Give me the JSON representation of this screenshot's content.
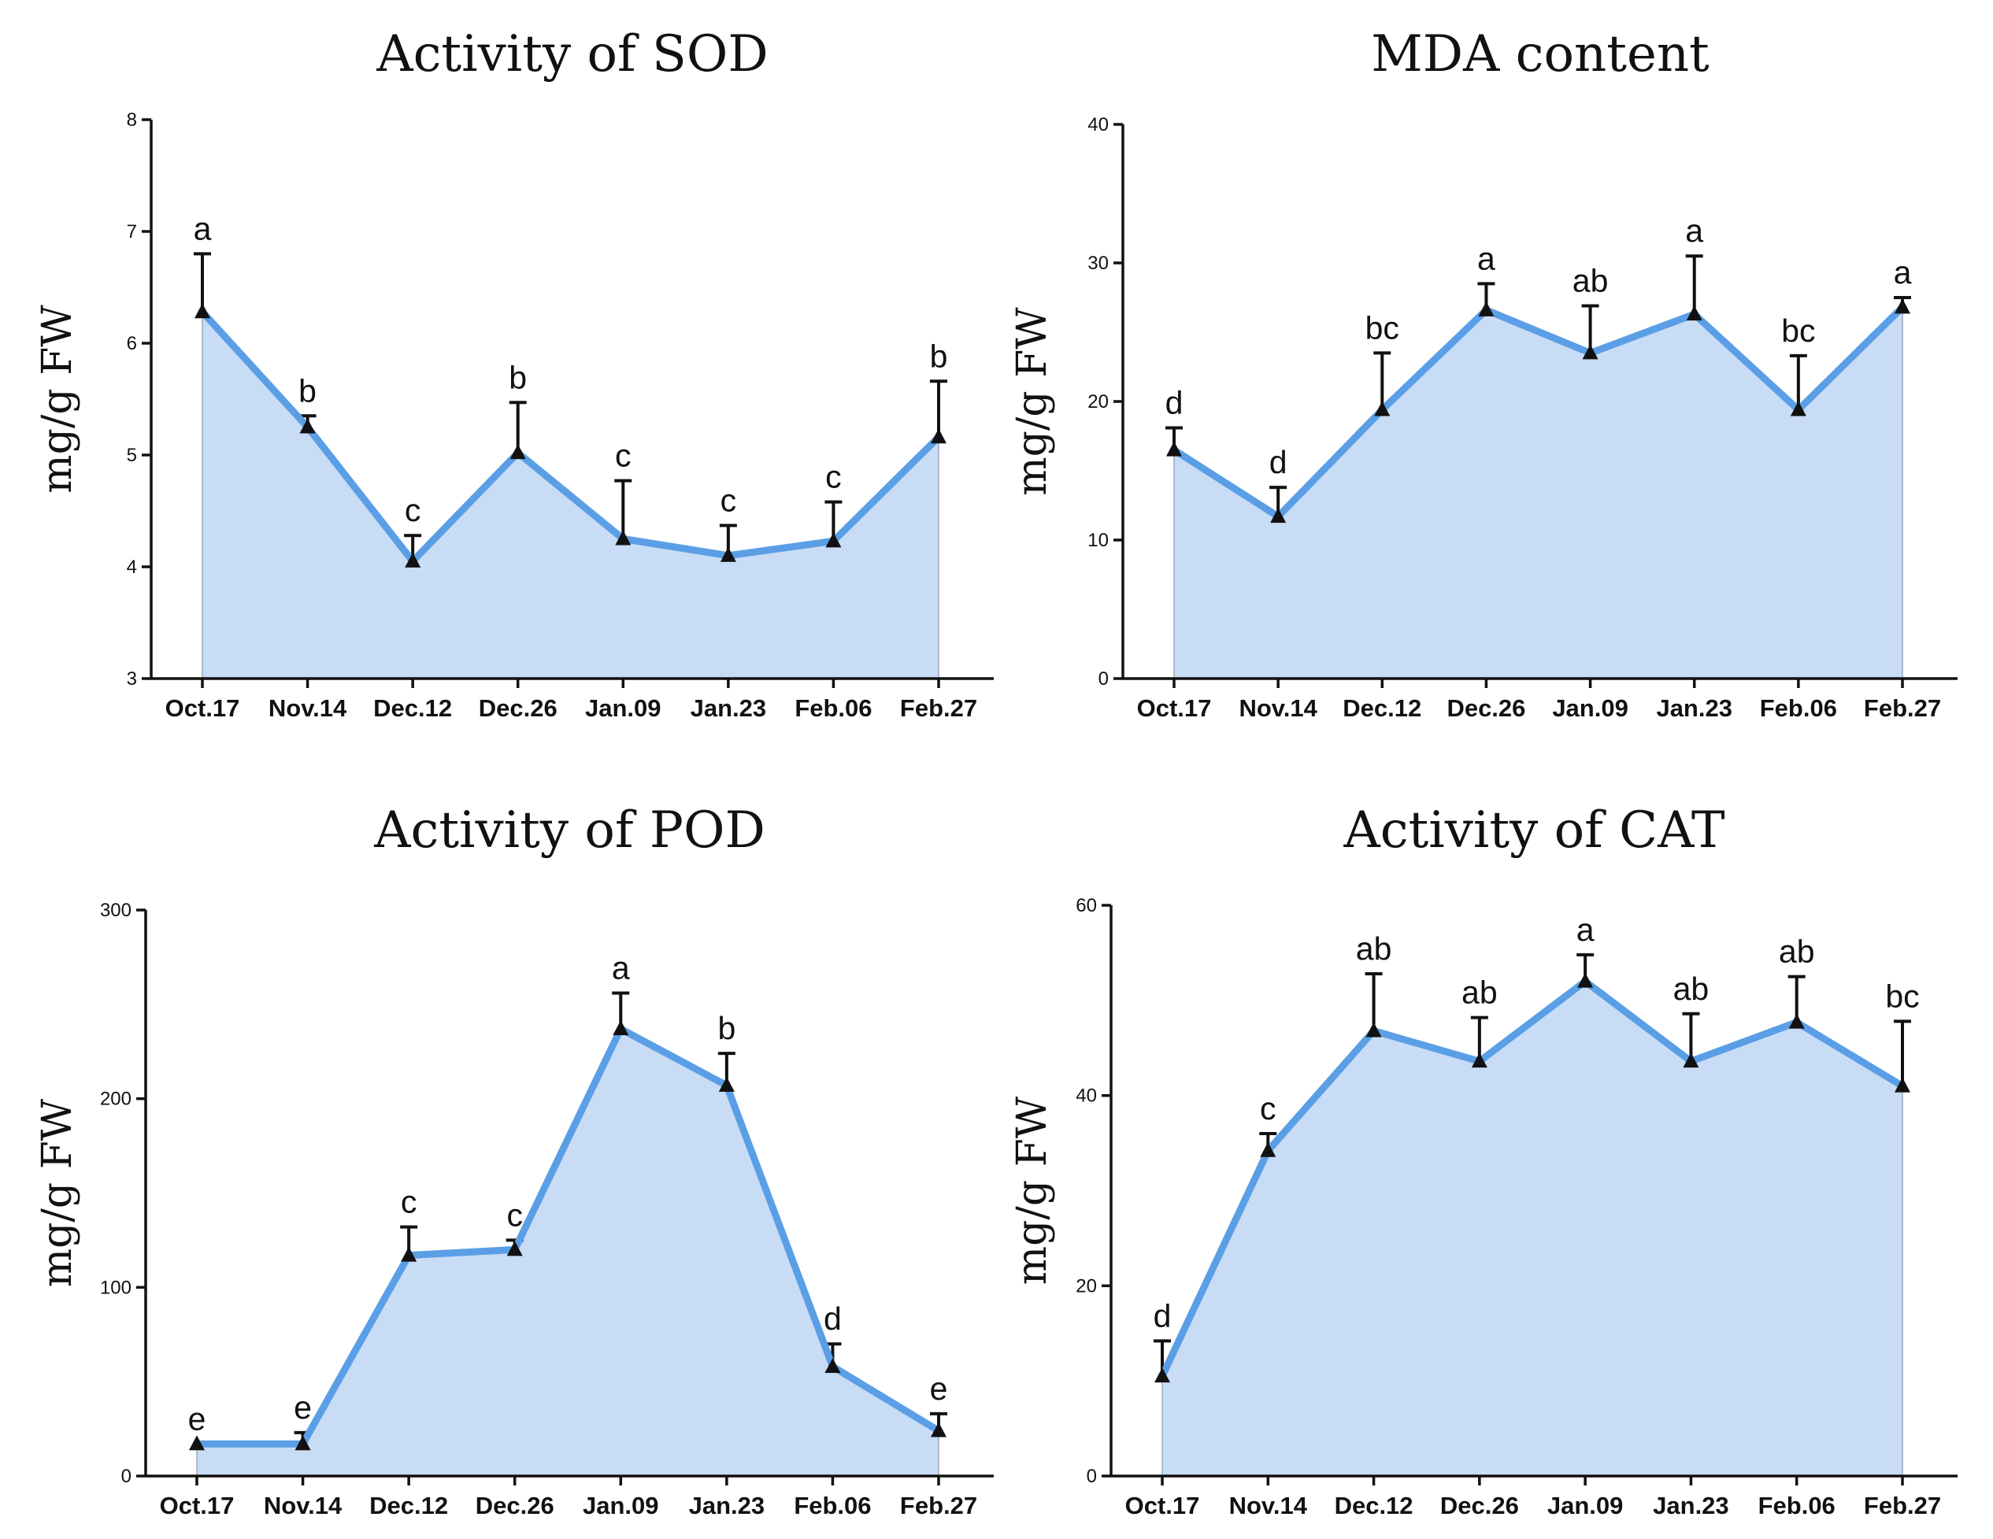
{
  "colors": {
    "line": "#5a9fe6",
    "fill": "#c9dcf6",
    "axis": "#111111",
    "marker": "#111111"
  },
  "chart_data": [
    {
      "type": "area",
      "title": "Activity of SOD",
      "ylabel": "mg/g  FW",
      "categories": [
        "Oct.17",
        "Nov.14",
        "Dec.12",
        "Dec.26",
        "Jan.09",
        "Jan.23",
        "Feb.06",
        "Feb.27"
      ],
      "ylim": [
        3,
        8
      ],
      "yticks": [
        3,
        4,
        5,
        6,
        7,
        8
      ],
      "series": [
        {
          "values": [
            6.28,
            5.25,
            4.05,
            5.02,
            4.25,
            4.1,
            4.23,
            5.16
          ],
          "errors": [
            0.52,
            0.1,
            0.23,
            0.45,
            0.52,
            0.27,
            0.35,
            0.5
          ],
          "letters": [
            "a",
            "b",
            "c",
            "b",
            "c",
            "c",
            "c",
            "b"
          ]
        }
      ]
    },
    {
      "type": "area",
      "title": "MDA content",
      "ylabel": "mg/g  FW",
      "categories": [
        "Oct.17",
        "Nov.14",
        "Dec.12",
        "Dec.26",
        "Jan.09",
        "Jan.23",
        "Feb.06",
        "Feb.27"
      ],
      "ylim": [
        0,
        40
      ],
      "yticks": [
        0,
        10,
        20,
        30,
        40
      ],
      "series": [
        {
          "values": [
            16.5,
            11.7,
            19.4,
            26.6,
            23.5,
            26.3,
            19.4,
            26.8
          ],
          "errors": [
            1.6,
            2.1,
            4.1,
            1.9,
            3.4,
            4.2,
            3.9,
            0.7
          ],
          "letters": [
            "d",
            "d",
            "bc",
            "a",
            "ab",
            "a",
            "bc",
            "a"
          ]
        }
      ]
    },
    {
      "type": "area",
      "title": "Activity of POD",
      "ylabel": "mg/g  FW",
      "categories": [
        "Oct.17",
        "Nov.14",
        "Dec.12",
        "Dec.26",
        "Jan.09",
        "Jan.23",
        "Feb.06",
        "Feb.27"
      ],
      "ylim": [
        0,
        300
      ],
      "yticks": [
        0,
        100,
        200,
        300
      ],
      "series": [
        {
          "values": [
            17,
            17,
            117,
            120,
            237,
            207,
            58,
            24
          ],
          "errors": [
            0,
            6,
            15,
            5,
            19,
            17,
            12,
            9
          ],
          "letters": [
            "e",
            "e",
            "c",
            "c",
            "a",
            "b",
            "d",
            "e"
          ]
        }
      ]
    },
    {
      "type": "area",
      "title": "Activity of CAT",
      "ylabel": "mg/g  FW",
      "categories": [
        "Oct.17",
        "Nov.14",
        "Dec.12",
        "Dec.26",
        "Jan.09",
        "Jan.23",
        "Feb.06",
        "Feb.27"
      ],
      "ylim": [
        0,
        60
      ],
      "yticks": [
        0,
        20,
        40,
        60
      ],
      "series": [
        {
          "values": [
            10.5,
            34.2,
            46.8,
            43.6,
            52.0,
            43.6,
            47.7,
            41.0
          ],
          "errors": [
            3.7,
            1.8,
            6.0,
            4.6,
            2.8,
            5.0,
            4.8,
            6.8
          ],
          "letters": [
            "d",
            "c",
            "ab",
            "ab",
            "a",
            "ab",
            "ab",
            "bc"
          ]
        }
      ]
    }
  ]
}
